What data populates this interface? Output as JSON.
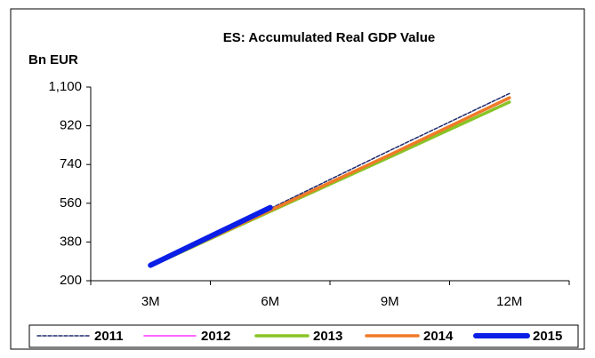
{
  "chart_data": {
    "type": "line",
    "title": "ES: Accumulated Real GDP Value",
    "y_label": "Bn EUR",
    "categories": [
      "3M",
      "6M",
      "9M",
      "12M"
    ],
    "ylim": [
      200,
      1100
    ],
    "yticks": [
      200,
      380,
      560,
      740,
      920,
      {
        "value": 1100,
        "label": "1,100"
      }
    ],
    "series": [
      {
        "name": "2011",
        "color": "#1f2a6e",
        "dashed": true,
        "width": 1.5,
        "values": [
          270,
          535,
          805,
          1070
        ]
      },
      {
        "name": "2012",
        "color": "#ff33ff",
        "width": 1.5,
        "values": [
          268,
          528,
          785,
          1045
        ]
      },
      {
        "name": "2013",
        "color": "#88c425",
        "width": 3.5,
        "values": [
          268,
          522,
          775,
          1030
        ]
      },
      {
        "name": "2014",
        "color": "#f07a28",
        "width": 3.5,
        "values": [
          270,
          527,
          785,
          1050
        ]
      },
      {
        "name": "2015",
        "color": "#0a1ee6",
        "width": 6,
        "values": [
          272,
          540,
          null,
          null
        ]
      }
    ]
  }
}
